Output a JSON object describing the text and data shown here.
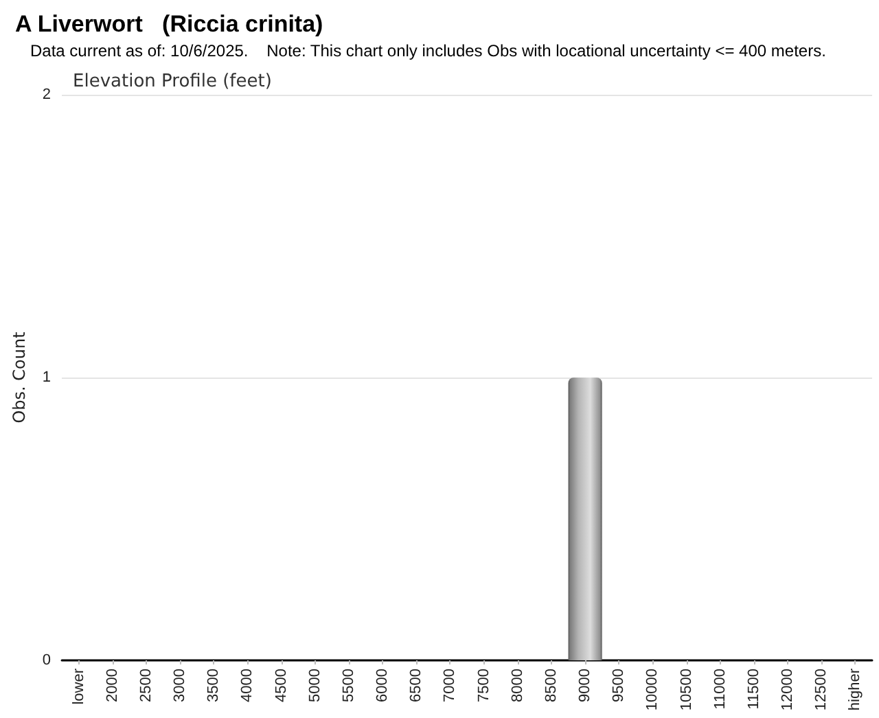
{
  "chart_data": {
    "type": "bar",
    "title": "A Liverwort   (Riccia crinita)",
    "subtitle": "Data current as of: 10/6/2025.    Note: This chart only includes Obs with locational uncertainty <= 400 meters.",
    "annotations": [
      "Elevation Profile (feet)"
    ],
    "ylabel": "Obs. Count",
    "categories": [
      "lower",
      "2000",
      "2500",
      "3000",
      "3500",
      "4000",
      "4500",
      "5000",
      "5500",
      "6000",
      "6500",
      "7000",
      "7500",
      "8000",
      "8500",
      "9000",
      "9500",
      "10000",
      "10500",
      "11000",
      "11500",
      "12000",
      "12500",
      "higher"
    ],
    "values": [
      0,
      0,
      0,
      0,
      0,
      0,
      0,
      0,
      0,
      0,
      0,
      0,
      0,
      0,
      0,
      1,
      0,
      0,
      0,
      0,
      0,
      0,
      0,
      0
    ],
    "color": "#b4b4b4",
    "ylim": [
      0,
      2
    ],
    "yticks": [
      0,
      1,
      2
    ],
    "grid": "y"
  }
}
